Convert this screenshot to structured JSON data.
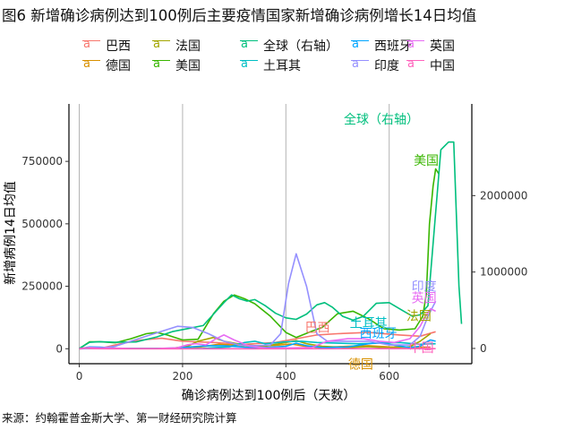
{
  "title": "图6 新增确诊病例达到100例后主要疫情国家新增确诊病例增长14日均值",
  "source": "来源：约翰霍普金斯大学、第一财经研究院计算",
  "chart_data": {
    "type": "line",
    "xlabel": "确诊病例达到100例后（天数）",
    "ylabel": "新增病例14日均值",
    "xlim": [
      -20,
      760
    ],
    "ylim_left": [
      -60000,
      980000
    ],
    "ylim_right": [
      -200000,
      3200000
    ],
    "x_ticks": [
      0,
      200,
      400,
      600
    ],
    "y_ticks_left": [
      0,
      250000,
      500000,
      750000
    ],
    "y_tick_labels_left": [
      "0",
      "250000",
      "500000",
      "750000"
    ],
    "y_ticks_right": [
      0,
      1000000,
      2000000
    ],
    "y_tick_labels_right": [
      "0",
      "1000000",
      "2000000"
    ],
    "grid": "vertical-major",
    "legend_position": "top",
    "series": [
      {
        "name": "巴西",
        "color": "#F8766D",
        "axis": "left",
        "end_label": "巴西",
        "points": [
          [
            0,
            0
          ],
          [
            40,
            1000
          ],
          [
            80,
            20000
          ],
          [
            120,
            35000
          ],
          [
            160,
            42000
          ],
          [
            200,
            30000
          ],
          [
            260,
            25000
          ],
          [
            320,
            18000
          ],
          [
            380,
            25000
          ],
          [
            420,
            40000
          ],
          [
            460,
            55000
          ],
          [
            500,
            60000
          ],
          [
            560,
            65000
          ],
          [
            620,
            55000
          ],
          [
            660,
            50000
          ],
          [
            690,
            68000
          ]
        ]
      },
      {
        "name": "德国",
        "color": "#D89000",
        "axis": "left",
        "end_label": "德国",
        "points": [
          [
            0,
            0
          ],
          [
            20,
            5000
          ],
          [
            40,
            3000
          ],
          [
            80,
            600
          ],
          [
            150,
            500
          ],
          [
            200,
            700
          ],
          [
            220,
            3000
          ],
          [
            240,
            9000
          ],
          [
            270,
            18000
          ],
          [
            300,
            15000
          ],
          [
            340,
            10000
          ],
          [
            380,
            14000
          ],
          [
            410,
            19000
          ],
          [
            440,
            9000
          ],
          [
            470,
            5000
          ],
          [
            520,
            10000
          ],
          [
            560,
            12000
          ],
          [
            600,
            7000
          ],
          [
            640,
            6000
          ],
          [
            680,
            6000
          ]
        ]
      },
      {
        "name": "法国",
        "color": "#A3A500",
        "axis": "left",
        "end_label": "法国",
        "points": [
          [
            0,
            0
          ],
          [
            20,
            3000
          ],
          [
            40,
            4000
          ],
          [
            80,
            300
          ],
          [
            150,
            500
          ],
          [
            180,
            2000
          ],
          [
            210,
            10000
          ],
          [
            230,
            30000
          ],
          [
            260,
            45000
          ],
          [
            280,
            30000
          ],
          [
            320,
            15000
          ],
          [
            360,
            10000
          ],
          [
            400,
            25000
          ],
          [
            420,
            33000
          ],
          [
            440,
            20000
          ],
          [
            470,
            10000
          ],
          [
            520,
            5000
          ],
          [
            560,
            8000
          ],
          [
            600,
            3000
          ],
          [
            640,
            8000
          ],
          [
            660,
            30000
          ],
          [
            680,
            60000
          ]
        ]
      },
      {
        "name": "美国",
        "color": "#39B600",
        "axis": "left",
        "end_label": "美国",
        "points": [
          [
            0,
            0
          ],
          [
            20,
            28000
          ],
          [
            40,
            28000
          ],
          [
            70,
            24000
          ],
          [
            100,
            40000
          ],
          [
            130,
            60000
          ],
          [
            150,
            65000
          ],
          [
            170,
            55000
          ],
          [
            200,
            35000
          ],
          [
            230,
            38000
          ],
          [
            260,
            140000
          ],
          [
            280,
            190000
          ],
          [
            300,
            215000
          ],
          [
            320,
            200000
          ],
          [
            340,
            180000
          ],
          [
            370,
            130000
          ],
          [
            400,
            65000
          ],
          [
            420,
            45000
          ],
          [
            450,
            70000
          ],
          [
            470,
            85000
          ],
          [
            500,
            140000
          ],
          [
            530,
            150000
          ],
          [
            560,
            120000
          ],
          [
            590,
            80000
          ],
          [
            620,
            75000
          ],
          [
            650,
            80000
          ],
          [
            665,
            130000
          ],
          [
            672,
            220000
          ],
          [
            678,
            500000
          ],
          [
            685,
            650000
          ],
          [
            690,
            720000
          ],
          [
            696,
            700000
          ]
        ]
      },
      {
        "name": "全球（右轴）",
        "color": "#00BF7D",
        "axis": "right",
        "end_label": "全球（右轴）",
        "points": [
          [
            0,
            0
          ],
          [
            20,
            80000
          ],
          [
            40,
            88000
          ],
          [
            70,
            80000
          ],
          [
            110,
            85000
          ],
          [
            150,
            150000
          ],
          [
            180,
            220000
          ],
          [
            210,
            260000
          ],
          [
            240,
            300000
          ],
          [
            260,
            450000
          ],
          [
            280,
            600000
          ],
          [
            295,
            700000
          ],
          [
            310,
            650000
          ],
          [
            325,
            620000
          ],
          [
            340,
            640000
          ],
          [
            360,
            560000
          ],
          [
            380,
            460000
          ],
          [
            400,
            400000
          ],
          [
            420,
            380000
          ],
          [
            440,
            450000
          ],
          [
            460,
            570000
          ],
          [
            475,
            600000
          ],
          [
            490,
            540000
          ],
          [
            510,
            420000
          ],
          [
            530,
            370000
          ],
          [
            550,
            420000
          ],
          [
            575,
            590000
          ],
          [
            600,
            600000
          ],
          [
            625,
            500000
          ],
          [
            645,
            420000
          ],
          [
            660,
            440000
          ],
          [
            675,
            560000
          ],
          [
            700,
            2600000
          ],
          [
            715,
            2700000
          ],
          [
            725,
            2700000
          ],
          [
            735,
            820000
          ],
          [
            740,
            320000
          ]
        ]
      },
      {
        "name": "土耳其",
        "color": "#00BFC4",
        "axis": "left",
        "end_label": "土耳其",
        "points": [
          [
            0,
            0
          ],
          [
            20,
            3000
          ],
          [
            40,
            4000
          ],
          [
            80,
            1500
          ],
          [
            140,
            1000
          ],
          [
            200,
            1500
          ],
          [
            240,
            1800
          ],
          [
            265,
            5000
          ],
          [
            290,
            7000
          ],
          [
            320,
            25000
          ],
          [
            340,
            30000
          ],
          [
            360,
            20000
          ],
          [
            400,
            28000
          ],
          [
            430,
            30000
          ],
          [
            460,
            25000
          ],
          [
            500,
            22000
          ],
          [
            540,
            20000
          ],
          [
            580,
            22000
          ],
          [
            620,
            25000
          ],
          [
            660,
            18000
          ],
          [
            690,
            20000
          ]
        ]
      },
      {
        "name": "西班牙",
        "color": "#00A5FF",
        "axis": "left",
        "end_label": "西班牙",
        "points": [
          [
            0,
            0
          ],
          [
            20,
            7000
          ],
          [
            40,
            6500
          ],
          [
            80,
            1000
          ],
          [
            150,
            500
          ],
          [
            190,
            3000
          ],
          [
            220,
            8000
          ],
          [
            250,
            12000
          ],
          [
            280,
            12000
          ],
          [
            320,
            6000
          ],
          [
            360,
            5000
          ],
          [
            400,
            10000
          ],
          [
            420,
            22000
          ],
          [
            440,
            12000
          ],
          [
            470,
            5000
          ],
          [
            520,
            7000
          ],
          [
            560,
            20000
          ],
          [
            580,
            25000
          ],
          [
            610,
            14000
          ],
          [
            640,
            5000
          ],
          [
            660,
            10000
          ],
          [
            670,
            25000
          ],
          [
            680,
            35000
          ],
          [
            690,
            30000
          ]
        ]
      },
      {
        "name": "印度",
        "color": "#9590FF",
        "axis": "left",
        "end_label": "印度",
        "points": [
          [
            0,
            0
          ],
          [
            40,
            2000
          ],
          [
            70,
            10000
          ],
          [
            100,
            30000
          ],
          [
            130,
            50000
          ],
          [
            160,
            70000
          ],
          [
            190,
            90000
          ],
          [
            220,
            85000
          ],
          [
            250,
            60000
          ],
          [
            280,
            30000
          ],
          [
            310,
            15000
          ],
          [
            340,
            12000
          ],
          [
            370,
            15000
          ],
          [
            390,
            60000
          ],
          [
            405,
            260000
          ],
          [
            420,
            380000
          ],
          [
            440,
            250000
          ],
          [
            460,
            60000
          ],
          [
            480,
            30000
          ],
          [
            520,
            30000
          ],
          [
            560,
            30000
          ],
          [
            600,
            15000
          ],
          [
            640,
            15000
          ],
          [
            660,
            50000
          ],
          [
            675,
            130000
          ],
          [
            690,
            190000
          ]
        ]
      },
      {
        "name": "英国",
        "color": "#E76BF3",
        "axis": "left",
        "end_label": "英国",
        "points": [
          [
            0,
            0
          ],
          [
            20,
            5000
          ],
          [
            50,
            3000
          ],
          [
            100,
            800
          ],
          [
            150,
            800
          ],
          [
            190,
            4000
          ],
          [
            210,
            16000
          ],
          [
            225,
            20000
          ],
          [
            245,
            15000
          ],
          [
            265,
            40000
          ],
          [
            280,
            55000
          ],
          [
            300,
            35000
          ],
          [
            330,
            10000
          ],
          [
            360,
            3000
          ],
          [
            400,
            3000
          ],
          [
            450,
            5000
          ],
          [
            480,
            30000
          ],
          [
            520,
            40000
          ],
          [
            550,
            40000
          ],
          [
            580,
            30000
          ],
          [
            610,
            25000
          ],
          [
            640,
            40000
          ],
          [
            660,
            90000
          ],
          [
            670,
            130000
          ],
          [
            680,
            160000
          ],
          [
            690,
            150000
          ]
        ]
      },
      {
        "name": "中国",
        "color": "#FF62BC",
        "axis": "left",
        "end_label": "中国",
        "points": [
          [
            0,
            0
          ],
          [
            10,
            3000
          ],
          [
            20,
            2000
          ],
          [
            30,
            300
          ],
          [
            60,
            50
          ],
          [
            200,
            30
          ],
          [
            400,
            50
          ],
          [
            600,
            80
          ],
          [
            690,
            100
          ]
        ]
      }
    ]
  }
}
